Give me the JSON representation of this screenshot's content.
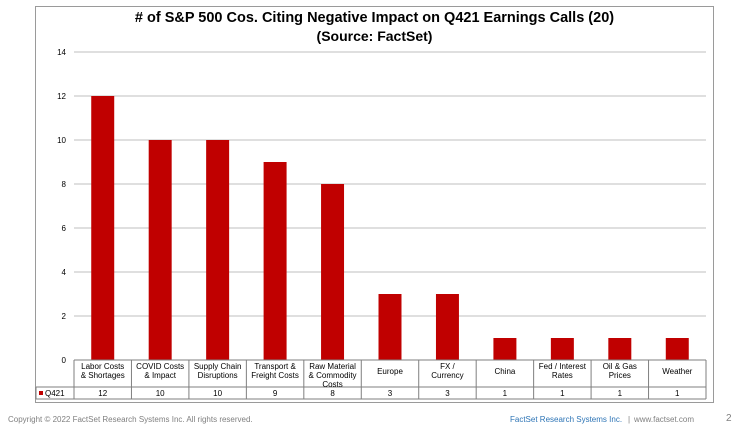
{
  "footer": {
    "copyright": "Copyright © 2022 FactSet Research Systems Inc. All rights reserved.",
    "company": "FactSet Research Systems Inc.",
    "separator": "|",
    "url": "www.factset.com",
    "page_number": "2"
  },
  "chart_data": {
    "type": "bar",
    "title": "# of S&P 500 Cos. Citing Negative Impact on Q421 Earnings Calls (20)",
    "subtitle": "(Source: FactSet)",
    "categories": [
      [
        "Labor Costs",
        "& Shortages"
      ],
      [
        "COVID Costs",
        "& Impact"
      ],
      [
        "Supply Chain",
        "Disruptions"
      ],
      [
        "Transport &",
        "Freight Costs"
      ],
      [
        "Raw Material",
        "& Commodity",
        "Costs"
      ],
      [
        "Europe"
      ],
      [
        "FX /",
        "Currency"
      ],
      [
        "China"
      ],
      [
        "Fed / Interest",
        "Rates"
      ],
      [
        "Oil & Gas",
        "Prices"
      ],
      [
        "Weather"
      ]
    ],
    "series": [
      {
        "name": "Q421",
        "values": [
          12,
          10,
          10,
          9,
          8,
          3,
          3,
          1,
          1,
          1,
          1
        ],
        "color": "#c00000"
      }
    ],
    "ylim": [
      0,
      14
    ],
    "yticks": [
      0,
      2,
      4,
      6,
      8,
      10,
      12,
      14
    ],
    "grid": true,
    "legend": "data-table"
  }
}
